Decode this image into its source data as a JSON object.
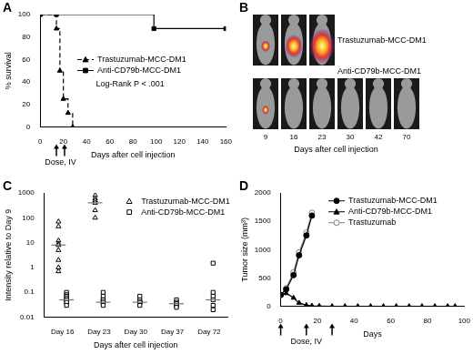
{
  "chart_data": [
    {
      "title": "A",
      "type": "step",
      "x_label": "Days after cell injection",
      "y_label": "% survival",
      "xlim": [
        0,
        160
      ],
      "xticks": [
        0,
        20,
        40,
        60,
        80,
        100,
        120,
        140,
        160
      ],
      "ylim": [
        0,
        100
      ],
      "yticks": [
        0,
        20,
        40,
        60,
        80,
        100
      ],
      "grid": false,
      "legend": "center",
      "annotations": [
        "Log-Rank P < .001"
      ],
      "dose_label": "Dose, IV",
      "dose_days": [
        14,
        21
      ],
      "series": [
        {
          "name": "Trastuzumab-MCC-DM1",
          "color": "#000000",
          "marker": "triangle",
          "line_style": "dashed",
          "x": [
            0,
            14,
            17,
            20,
            24,
            28
          ],
          "values": [
            100,
            87.5,
            50,
            25,
            12.5,
            0
          ]
        },
        {
          "name": "Anti-CD79b-MCC-DM1",
          "color": "#000000",
          "marker": "square",
          "line_style": "solid",
          "x": [
            0,
            14,
            98,
            160
          ],
          "values": [
            100,
            100,
            87.5,
            87.5
          ]
        }
      ]
    },
    {
      "title": "C",
      "type": "scatter",
      "x_label": "Days after cell injection",
      "y_label": "Intensity relative to Day 9",
      "categories": [
        "Day 16",
        "Day 23",
        "Day 30",
        "Day 37",
        "Day 72"
      ],
      "log": "y",
      "ylim": [
        0.01,
        1000
      ],
      "yticks": [
        0.01,
        0.1,
        1,
        10,
        100,
        1000
      ],
      "grid": false,
      "legend": "upper right",
      "series": [
        {
          "name": "Trastuzumab-MCC-DM1",
          "color": "#000000",
          "marker": "open_triangle",
          "values": [
            [
              70,
              45,
              12,
              9,
              8,
              5,
              2,
              1,
              0.7
            ],
            [
              800,
              600,
              500,
              400,
              200,
              100
            ],
            [],
            [],
            []
          ],
          "medians": [
            8,
            400,
            null,
            null,
            null
          ]
        },
        {
          "name": "Anti-CD79b-MCC-DM1",
          "color": "#000000",
          "marker": "open_square",
          "values": [
            [
              0.1,
              0.08,
              0.07,
              0.06,
              0.05,
              0.05,
              0.04,
              0.04,
              0.03
            ],
            [
              0.1,
              0.07,
              0.05,
              0.05,
              0.04,
              0.04,
              0.03
            ],
            [
              0.07,
              0.05,
              0.04,
              0.04,
              0.04,
              0.03
            ],
            [
              0.05,
              0.04,
              0.035,
              0.03,
              0.03,
              0.025
            ],
            [
              1.5,
              0.1,
              0.07,
              0.05,
              0.03,
              0.02
            ]
          ],
          "medians": [
            0.05,
            0.04,
            0.04,
            0.035,
            0.05
          ]
        }
      ]
    },
    {
      "title": "D",
      "type": "line",
      "x_label": "Days",
      "y_label": "Tumor size (mm³)",
      "xlim": [
        0,
        100
      ],
      "xticks": [
        0,
        20,
        40,
        60,
        80,
        100
      ],
      "ylim": [
        0,
        2000
      ],
      "yticks": [
        0,
        500,
        1000,
        1500,
        2000
      ],
      "grid": false,
      "legend": "upper left",
      "dose_label": "Dose, IV",
      "dose_days": [
        0,
        14,
        28
      ],
      "series": [
        {
          "name": "Trastuzumab-MCC-DM1",
          "color": "#000000",
          "marker": "circle",
          "line_style": "solid",
          "x": [
            0,
            3,
            7,
            10,
            14,
            17
          ],
          "values": [
            200,
            300,
            550,
            900,
            1250,
            1600
          ]
        },
        {
          "name": "Anti-CD79b-MCC-DM1",
          "color": "#000000",
          "marker": "triangle",
          "line_style": "solid",
          "x": [
            0,
            3,
            7,
            10,
            14,
            17,
            21,
            28,
            35,
            42,
            49,
            56,
            63,
            70,
            77,
            84,
            91,
            95
          ],
          "values": [
            200,
            230,
            150,
            60,
            20,
            10,
            5,
            0,
            0,
            0,
            0,
            0,
            0,
            0,
            0,
            0,
            0,
            0
          ]
        },
        {
          "name": "Trastuzumab",
          "color": "#808080",
          "marker": "open_circle",
          "line_style": "solid",
          "x": [
            0,
            3,
            7,
            10,
            14,
            17
          ],
          "values": [
            200,
            320,
            600,
            950,
            1300,
            1650
          ]
        }
      ]
    }
  ],
  "image_panel": {
    "title": "B",
    "x_label": "Days after cell injection",
    "rows": [
      {
        "label": "Trastuzumab-MCC-DM1",
        "days": [
          9,
          16,
          23
        ]
      },
      {
        "label": "Anti-CD79b-MCC-DM1",
        "days": [
          9,
          16,
          23,
          30,
          42,
          70
        ]
      }
    ]
  }
}
